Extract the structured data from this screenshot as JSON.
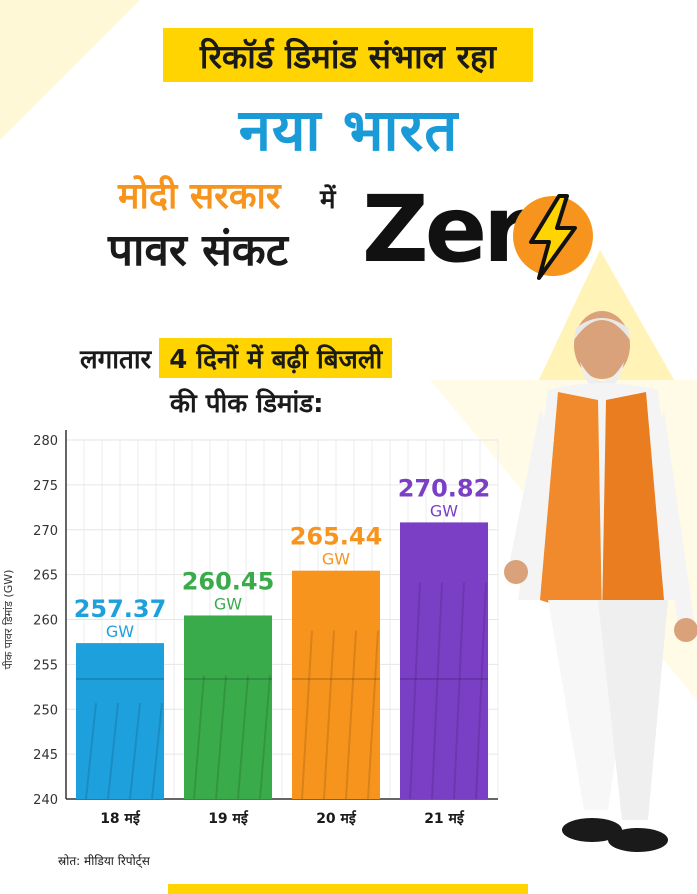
{
  "header": {
    "banner": "रिकॉर्ड डिमांड संभाल रहा",
    "title": "नया भारत",
    "line_modi": "मोदी सरकार",
    "line_mein": "में",
    "line_pawar": "पावर संकट",
    "zero": "Zer"
  },
  "subtitle": {
    "prefix": "लगातार",
    "highlight": "4 दिनों में बढ़ी बिजली",
    "line2": "की पीक डिमांड:"
  },
  "source": "स्रोत: मीडिया रिपोर्ट्स",
  "chart_data": {
    "type": "bar",
    "categories": [
      "18 मई",
      "19 मई",
      "20 मई",
      "21 मई"
    ],
    "values": [
      257.37,
      260.45,
      265.44,
      270.82
    ],
    "value_labels": [
      "257.37",
      "260.45",
      "265.44",
      "270.82"
    ],
    "unit": "GW",
    "ylabel": "पीक पावर डिमांड (GW)",
    "ylim": [
      240,
      280
    ],
    "yticks": [
      "240",
      "245",
      "250",
      "255",
      "260",
      "265",
      "270",
      "275",
      "280"
    ],
    "grid": true,
    "colors": [
      "#1ea0dc",
      "#3aab4a",
      "#f7941d",
      "#7b3fc6"
    ]
  },
  "colors": {
    "yellow": "#ffd400",
    "blue_title": "#1a9bd8",
    "orange": "#f7941d"
  },
  "icons": [
    "lightning-bolt-icon"
  ]
}
